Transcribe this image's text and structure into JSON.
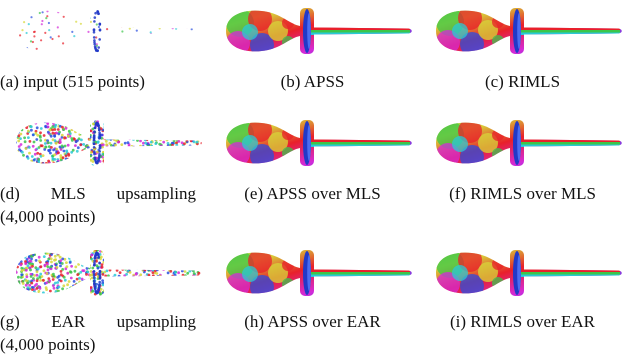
{
  "figure": {
    "panels": [
      {
        "id": "a",
        "kind": "points",
        "caption": "(a) input (515 points)",
        "density": "sparse"
      },
      {
        "id": "b",
        "kind": "surface",
        "caption": "(b) APSS"
      },
      {
        "id": "c",
        "kind": "surface",
        "caption": "(c) RIMLS"
      },
      {
        "id": "d",
        "kind": "points",
        "caption_words": [
          "(d)",
          "MLS",
          "upsampling"
        ],
        "caption_line2": "(4,000 points)",
        "density": "dense"
      },
      {
        "id": "e",
        "kind": "surface",
        "caption": "(e) APSS over MLS"
      },
      {
        "id": "f",
        "kind": "surface",
        "caption": "(f) RIMLS over MLS"
      },
      {
        "id": "g",
        "kind": "points",
        "caption_words": [
          "(g)",
          "EAR",
          "upsampling"
        ],
        "caption_line2": "(4,000 points)",
        "density": "dense"
      },
      {
        "id": "h",
        "kind": "surface",
        "caption": "(h) APSS over EAR"
      },
      {
        "id": "i",
        "kind": "surface",
        "caption": "(i) RIMLS over EAR"
      }
    ],
    "colors": {
      "red": "#e8202a",
      "magenta": "#d42ad8",
      "blue": "#2a4fe0",
      "cyan": "#29c9d6",
      "green": "#3cc64a",
      "yellow": "#d7d83a",
      "disc": "#2239c8",
      "background": "#ffffff"
    }
  }
}
